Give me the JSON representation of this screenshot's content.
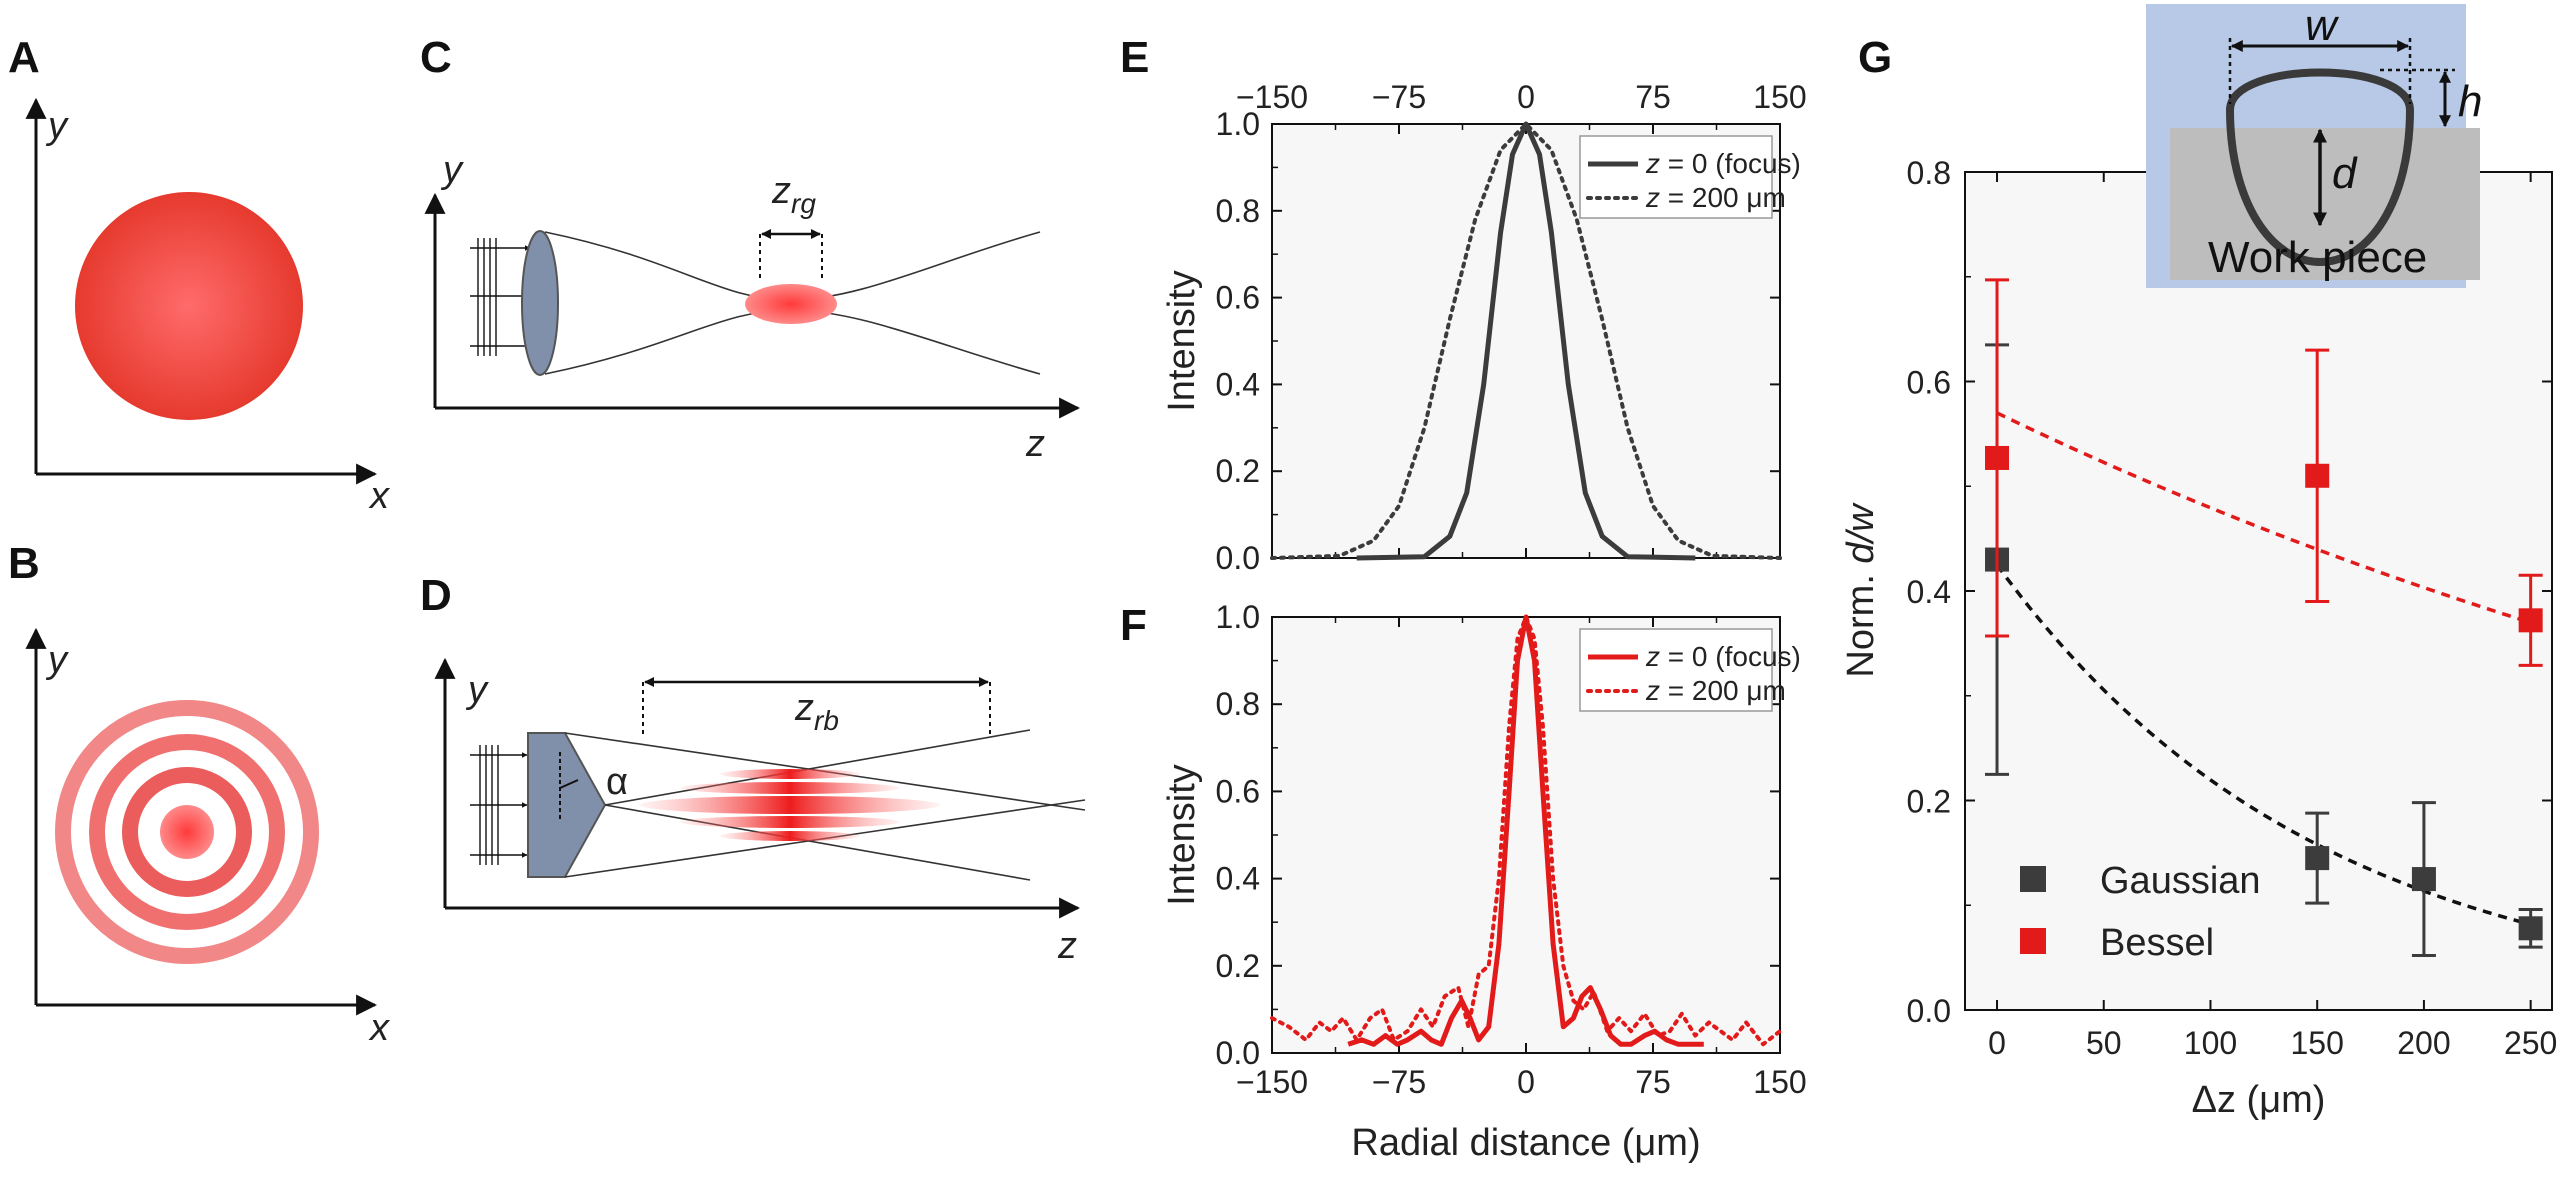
{
  "panels": {
    "A": {
      "label": "A",
      "x_axis": "x",
      "y_axis": "y"
    },
    "B": {
      "label": "B",
      "x_axis": "x",
      "y_axis": "y"
    },
    "C": {
      "label": "C",
      "y_axis": "y",
      "z_axis": "z",
      "range_label_main": "z",
      "range_label_sub": "rg"
    },
    "D": {
      "label": "D",
      "y_axis": "y",
      "z_axis": "z",
      "range_label_main": "z",
      "range_label_sub": "rb",
      "angle_label": "α"
    },
    "E": {
      "label": "E"
    },
    "F": {
      "label": "F"
    },
    "G": {
      "label": "G"
    }
  },
  "colors": {
    "gaussian": "#3c3c3c",
    "bessel": "#e21a1a",
    "inset_bg": "#b7c9e6",
    "inset_piece": "#bdbdbd",
    "lens": "#8090ab"
  },
  "chart_data": [
    {
      "id": "E",
      "type": "line",
      "xlabel": "",
      "ylabel": "Intensity",
      "xlim": [
        -150,
        150
      ],
      "ylim": [
        0,
        1.0
      ],
      "xticks_top": [
        "−150",
        "−75",
        "0",
        "75",
        "150"
      ],
      "yticks": [
        "0.0",
        "0.2",
        "0.4",
        "0.6",
        "0.8",
        "1.0"
      ],
      "series": [
        {
          "name": "z = 0 (focus)",
          "name_var": "z",
          "name_rest": " = 0 (focus)",
          "style": "solid",
          "color": "#3c3c3c",
          "x": [
            -100,
            -60,
            -45,
            -35,
            -25,
            -15,
            -8,
            0,
            8,
            15,
            25,
            35,
            45,
            60,
            100
          ],
          "y": [
            0,
            0.003,
            0.05,
            0.15,
            0.4,
            0.75,
            0.93,
            1.0,
            0.93,
            0.75,
            0.4,
            0.15,
            0.05,
            0.003,
            0
          ]
        },
        {
          "name": "z = 200 μm",
          "name_var": "z",
          "name_rest": " = 200 μm",
          "style": "dotted",
          "color": "#3c3c3c",
          "x": [
            -150,
            -110,
            -90,
            -75,
            -60,
            -45,
            -30,
            -15,
            0,
            15,
            30,
            45,
            60,
            75,
            90,
            110,
            150
          ],
          "y": [
            0,
            0.005,
            0.04,
            0.12,
            0.3,
            0.55,
            0.78,
            0.94,
            1.0,
            0.94,
            0.78,
            0.55,
            0.3,
            0.12,
            0.04,
            0.005,
            0
          ]
        }
      ]
    },
    {
      "id": "F",
      "type": "line",
      "xlabel": "Radial distance (μm)",
      "ylabel": "Intensity",
      "xlim": [
        -150,
        150
      ],
      "ylim": [
        0,
        1.0
      ],
      "xticks": [
        "−150",
        "−75",
        "0",
        "75",
        "150"
      ],
      "yticks": [
        "0.0",
        "0.2",
        "0.4",
        "0.6",
        "0.8",
        "1.0"
      ],
      "series": [
        {
          "name": "z = 0 (focus)",
          "name_var": "z",
          "name_rest": " = 0 (focus)",
          "style": "solid",
          "color": "#e21a1a",
          "x": [
            -105,
            -97,
            -90,
            -83,
            -76,
            -70,
            -62,
            -56,
            -50,
            -44,
            -38,
            -33,
            -28,
            -22,
            -16,
            -10,
            -5,
            0,
            5,
            10,
            16,
            22,
            28,
            33,
            38,
            44,
            50,
            56,
            62,
            70,
            76,
            83,
            90,
            97,
            105
          ],
          "y": [
            0.02,
            0.03,
            0.02,
            0.04,
            0.02,
            0.03,
            0.05,
            0.03,
            0.02,
            0.08,
            0.12,
            0.08,
            0.03,
            0.06,
            0.25,
            0.6,
            0.9,
            1.0,
            0.9,
            0.6,
            0.25,
            0.06,
            0.08,
            0.13,
            0.15,
            0.1,
            0.04,
            0.02,
            0.02,
            0.04,
            0.05,
            0.03,
            0.02,
            0.02,
            0.02
          ]
        },
        {
          "name": "z = 200 μm",
          "name_var": "z",
          "name_rest": " = 200 μm",
          "style": "dotted",
          "color": "#e21a1a",
          "x": [
            -150,
            -140,
            -130,
            -122,
            -115,
            -108,
            -100,
            -92,
            -85,
            -78,
            -70,
            -62,
            -55,
            -48,
            -40,
            -34,
            -28,
            -22,
            -16,
            -10,
            -5,
            0,
            5,
            10,
            16,
            22,
            28,
            34,
            40,
            48,
            55,
            62,
            70,
            78,
            85,
            92,
            100,
            108,
            115,
            122,
            130,
            140,
            150
          ],
          "y": [
            0.08,
            0.06,
            0.03,
            0.07,
            0.05,
            0.08,
            0.03,
            0.08,
            0.1,
            0.03,
            0.05,
            0.1,
            0.06,
            0.13,
            0.15,
            0.06,
            0.18,
            0.2,
            0.4,
            0.75,
            0.95,
            1.0,
            0.95,
            0.75,
            0.4,
            0.2,
            0.12,
            0.1,
            0.14,
            0.05,
            0.08,
            0.05,
            0.09,
            0.04,
            0.05,
            0.09,
            0.04,
            0.07,
            0.05,
            0.03,
            0.07,
            0.02,
            0.05
          ]
        }
      ]
    },
    {
      "id": "G",
      "type": "scatter",
      "xlabel_pre": "Δz (μm)",
      "ylabel_pre": "Norm. ",
      "ylabel_var": "d/w",
      "xlim": [
        -15,
        260
      ],
      "ylim": [
        0,
        0.8
      ],
      "xticks": [
        "0",
        "50",
        "100",
        "150",
        "200",
        "250"
      ],
      "yticks": [
        "0.0",
        "0.2",
        "0.4",
        "0.6",
        "0.8"
      ],
      "series": [
        {
          "name": "Gaussian",
          "color": "#3c3c3c",
          "x": [
            0,
            150,
            200,
            250
          ],
          "y": [
            0.43,
            0.145,
            0.125,
            0.078
          ],
          "err": [
            0.205,
            0.043,
            0.073,
            0.018
          ],
          "fit": {
            "x0": 0,
            "y0": 0.425,
            "k": 0.0066,
            "color": "#111111"
          }
        },
        {
          "name": "Bessel",
          "color": "#e21a1a",
          "x": [
            0,
            150,
            250
          ],
          "y": [
            0.527,
            0.51,
            0.372
          ],
          "err": [
            0.17,
            0.12,
            0.043
          ],
          "fit": {
            "x0": 0,
            "y0": 0.57,
            "k": 0.00173,
            "color": "#e21a1a"
          }
        }
      ]
    }
  ],
  "inset": {
    "w_label": "w",
    "h_label": "h",
    "d_label": "d",
    "workpiece_label": "Work piece"
  }
}
